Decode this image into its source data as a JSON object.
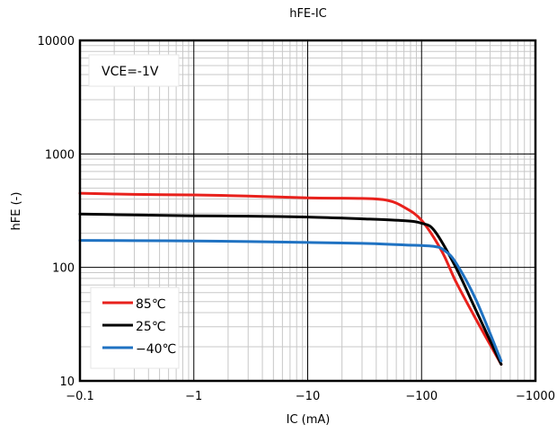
{
  "chart_data": {
    "type": "line",
    "title": "hFE-IC",
    "xlabel": "IC (mA)",
    "ylabel": "hFE (-)",
    "x_scale": "log",
    "y_scale": "log",
    "x_magnitude_range": [
      0.1,
      1000
    ],
    "ylim": [
      10,
      10000
    ],
    "x_tick_values": [
      0.1,
      1,
      10,
      100,
      1000
    ],
    "x_tick_labels": [
      "−0.1",
      "−1",
      "−10",
      "−100",
      "−1000"
    ],
    "y_tick_values": [
      10,
      100,
      1000,
      10000
    ],
    "y_tick_labels": [
      "10",
      "100",
      "1000",
      "10000"
    ],
    "annotation": "VCE=-1V",
    "grid": true,
    "legend_position": "bottom-left",
    "series": [
      {
        "name": "85℃",
        "color": "#e8211c",
        "points": [
          [
            0.1,
            450
          ],
          [
            0.3,
            440
          ],
          [
            1,
            435
          ],
          [
            3,
            425
          ],
          [
            10,
            410
          ],
          [
            30,
            405
          ],
          [
            50,
            390
          ],
          [
            70,
            340
          ],
          [
            100,
            260
          ],
          [
            150,
            140
          ],
          [
            200,
            75
          ],
          [
            300,
            35
          ],
          [
            500,
            14
          ]
        ]
      },
      {
        "name": "25℃",
        "color": "#000000",
        "points": [
          [
            0.1,
            295
          ],
          [
            0.3,
            290
          ],
          [
            1,
            285
          ],
          [
            3,
            283
          ],
          [
            10,
            278
          ],
          [
            30,
            268
          ],
          [
            70,
            258
          ],
          [
            100,
            245
          ],
          [
            130,
            210
          ],
          [
            200,
            100
          ],
          [
            300,
            42
          ],
          [
            500,
            14
          ]
        ]
      },
      {
        "name": "−40℃",
        "color": "#1f72c2",
        "points": [
          [
            0.1,
            173
          ],
          [
            0.3,
            172
          ],
          [
            1,
            171
          ],
          [
            3,
            169
          ],
          [
            10,
            166
          ],
          [
            30,
            163
          ],
          [
            70,
            158
          ],
          [
            130,
            153
          ],
          [
            160,
            140
          ],
          [
            200,
            110
          ],
          [
            300,
            52
          ],
          [
            500,
            15
          ]
        ]
      }
    ]
  }
}
